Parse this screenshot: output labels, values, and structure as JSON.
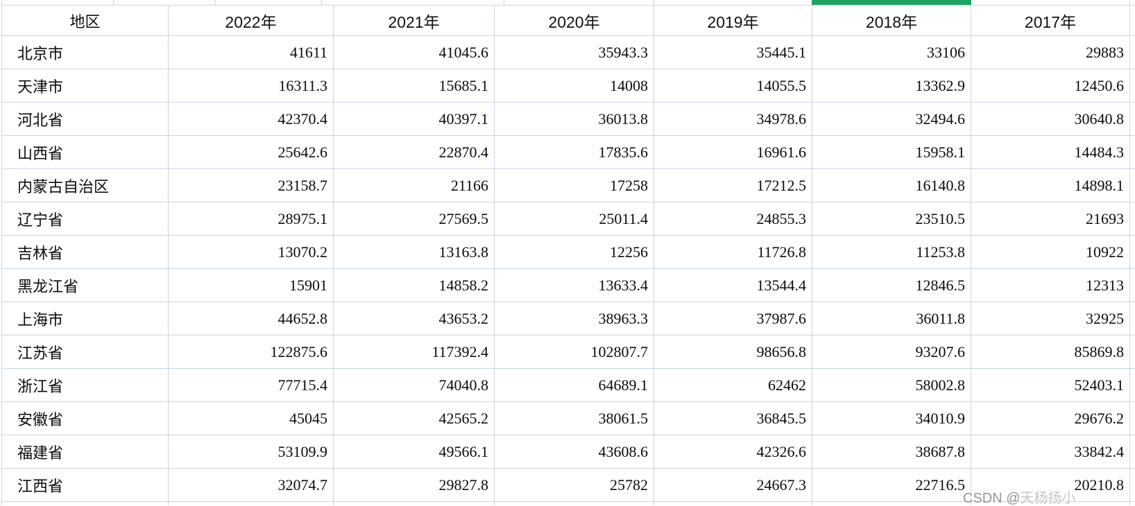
{
  "table": {
    "columns": [
      "地区",
      "2022年",
      "2021年",
      "2020年",
      "2019年",
      "2018年",
      "2017年"
    ],
    "highlighted_column": "2018年",
    "rows": [
      {
        "region": "北京市",
        "values": [
          "41611",
          "41045.6",
          "35943.3",
          "35445.1",
          "33106",
          "29883"
        ]
      },
      {
        "region": "天津市",
        "values": [
          "16311.3",
          "15685.1",
          "14008",
          "14055.5",
          "13362.9",
          "12450.6"
        ]
      },
      {
        "region": "河北省",
        "values": [
          "42370.4",
          "40397.1",
          "36013.8",
          "34978.6",
          "32494.6",
          "30640.8"
        ]
      },
      {
        "region": "山西省",
        "values": [
          "25642.6",
          "22870.4",
          "17835.6",
          "16961.6",
          "15958.1",
          "14484.3"
        ]
      },
      {
        "region": "内蒙古自治区",
        "values": [
          "23158.7",
          "21166",
          "17258",
          "17212.5",
          "16140.8",
          "14898.1"
        ]
      },
      {
        "region": "辽宁省",
        "values": [
          "28975.1",
          "27569.5",
          "25011.4",
          "24855.3",
          "23510.5",
          "21693"
        ]
      },
      {
        "region": "吉林省",
        "values": [
          "13070.2",
          "13163.8",
          "12256",
          "11726.8",
          "11253.8",
          "10922"
        ]
      },
      {
        "region": "黑龙江省",
        "values": [
          "15901",
          "14858.2",
          "13633.4",
          "13544.4",
          "12846.5",
          "12313"
        ]
      },
      {
        "region": "上海市",
        "values": [
          "44652.8",
          "43653.2",
          "38963.3",
          "37987.6",
          "36011.8",
          "32925"
        ]
      },
      {
        "region": "江苏省",
        "values": [
          "122875.6",
          "117392.4",
          "102807.7",
          "98656.8",
          "93207.6",
          "85869.8"
        ]
      },
      {
        "region": "浙江省",
        "values": [
          "77715.4",
          "74040.8",
          "64689.1",
          "62462",
          "58002.8",
          "52403.1"
        ]
      },
      {
        "region": "安徽省",
        "values": [
          "45045",
          "42565.2",
          "38061.5",
          "36845.5",
          "34010.9",
          "29676.2"
        ]
      },
      {
        "region": "福建省",
        "values": [
          "53109.9",
          "49566.1",
          "43608.6",
          "42326.6",
          "38687.8",
          "33842.4"
        ]
      },
      {
        "region": "江西省",
        "values": [
          "32074.7",
          "29827.8",
          "25782",
          "24667.3",
          "22716.5",
          "20210.8"
        ]
      }
    ]
  },
  "watermark": {
    "prefix": "CSDN @",
    "name": "天杨扬小"
  },
  "colors": {
    "gridline": "#c9d5e2",
    "column_highlight": "#1ea563",
    "watermark_gray": "#969696"
  }
}
